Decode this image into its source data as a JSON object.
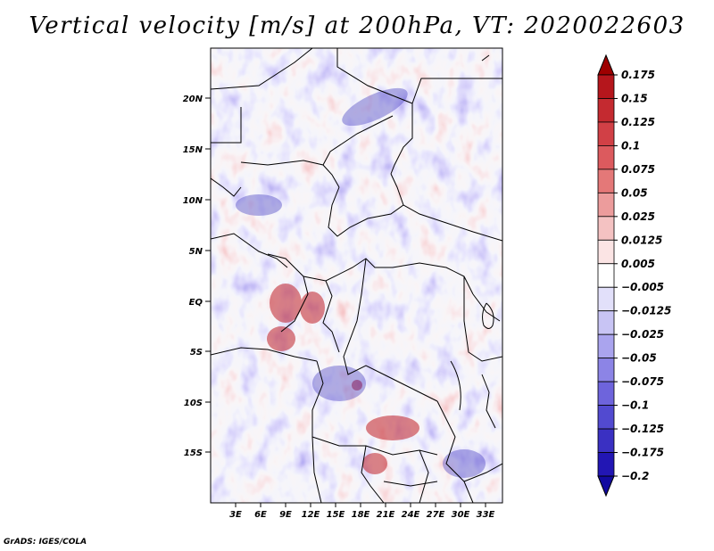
{
  "title": "Vertical velocity [m/s] at 200hPa, VT: 2020022603",
  "credit": "GrADS: IGES/COLA",
  "map": {
    "lat_labels": [
      "20N",
      "15N",
      "10N",
      "5N",
      "EQ",
      "5S",
      "10S",
      "15S"
    ],
    "lon_labels": [
      "3E",
      "6E",
      "9E",
      "12E",
      "15E",
      "18E",
      "21E",
      "24E",
      "27E",
      "30E",
      "33E"
    ]
  },
  "colorbar": {
    "labels": [
      "0.175",
      "0.15",
      "0.125",
      "0.1",
      "0.075",
      "0.05",
      "0.025",
      "0.0125",
      "0.005",
      "-0.005",
      "-0.0125",
      "-0.025",
      "-0.05",
      "-0.075",
      "-0.1",
      "-0.125",
      "-0.175",
      "-0.2"
    ],
    "colors": [
      "#9e0000",
      "#b5161c",
      "#c42a30",
      "#d14046",
      "#dc5a5e",
      "#e47878",
      "#ec9c9c",
      "#f4c2c2",
      "#fbe4e4",
      "#ffffff",
      "#e2e0fa",
      "#c8c4f4",
      "#aaa4ee",
      "#8c84e6",
      "#6e64dc",
      "#524ad0",
      "#3a30c2",
      "#2216b4",
      "#120aa0"
    ]
  }
}
